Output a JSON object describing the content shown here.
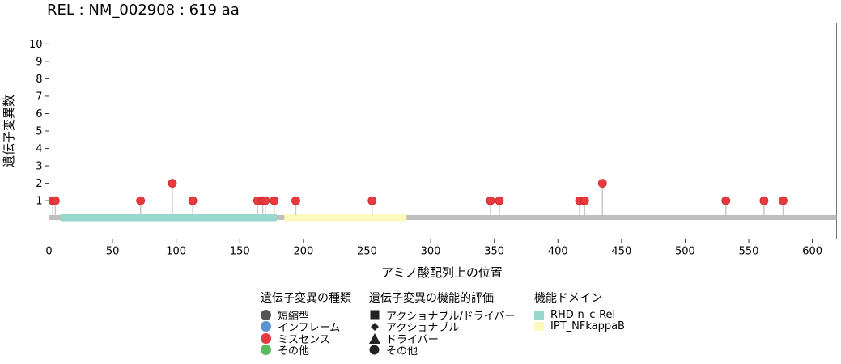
{
  "chart_data": {
    "type": "lollipop",
    "title": "REL : NM_002908 : 619 aa",
    "xlabel": "アミノ酸配列上の位置",
    "ylabel": "遺伝子変異数",
    "xlim": [
      0,
      619
    ],
    "ylim": [
      -1.2,
      11.2
    ],
    "x_ticks": [
      0,
      50,
      100,
      150,
      200,
      250,
      300,
      350,
      400,
      450,
      500,
      550,
      600
    ],
    "y_ticks": [
      1,
      2,
      3,
      4,
      5,
      6,
      7,
      8,
      9,
      10
    ],
    "grid": false,
    "protein_length": 619,
    "domains": [
      {
        "name": "RHD-n_c-Rel",
        "start": 9,
        "end": 179,
        "color": "#96d8cc"
      },
      {
        "name": "IPT_NFkappaB",
        "start": 185,
        "end": 281,
        "color": "#fcf9bd"
      }
    ],
    "mutations": [
      {
        "position": 3,
        "count": 1,
        "type": "ミスセンス"
      },
      {
        "position": 5,
        "count": 1,
        "type": "ミスセンス"
      },
      {
        "position": 72,
        "count": 1,
        "type": "ミスセンス"
      },
      {
        "position": 97,
        "count": 2,
        "type": "ミスセンス"
      },
      {
        "position": 113,
        "count": 1,
        "type": "ミスセンス"
      },
      {
        "position": 164,
        "count": 1,
        "type": "ミスセンス"
      },
      {
        "position": 168,
        "count": 1,
        "type": "ミスセンス"
      },
      {
        "position": 170,
        "count": 1,
        "type": "ミスセンス"
      },
      {
        "position": 177,
        "count": 1,
        "type": "ミスセンス"
      },
      {
        "position": 194,
        "count": 1,
        "type": "ミスセンス"
      },
      {
        "position": 254,
        "count": 1,
        "type": "ミスセンス"
      },
      {
        "position": 347,
        "count": 1,
        "type": "ミスセンス"
      },
      {
        "position": 354,
        "count": 1,
        "type": "ミスセンス"
      },
      {
        "position": 417,
        "count": 1,
        "type": "ミスセンス"
      },
      {
        "position": 421,
        "count": 1,
        "type": "ミスセンス"
      },
      {
        "position": 435,
        "count": 2,
        "type": "ミスセンス"
      },
      {
        "position": 532,
        "count": 1,
        "type": "ミスセンス"
      },
      {
        "position": 562,
        "count": 1,
        "type": "ミスセンス"
      },
      {
        "position": 577,
        "count": 1,
        "type": "ミスセンス"
      }
    ],
    "colors": {
      "backbone": "#bebebe",
      "stem": "#c8c8c8",
      "missense": "#e8393f",
      "missense_stroke": "#c9262b"
    }
  },
  "legend": {
    "type": {
      "title": "遺伝子変異の種類",
      "items": [
        {
          "label": "短縮型",
          "color": "#555555"
        },
        {
          "label": "インフレーム",
          "color": "#5b93d1"
        },
        {
          "label": "ミスセンス",
          "color": "#e8393f"
        },
        {
          "label": "その他",
          "color": "#5cba5c"
        }
      ]
    },
    "evaluation": {
      "title": "遺伝子変異の機能的評価",
      "items": [
        {
          "label": "アクショナブル/ドライバー",
          "shape": "square"
        },
        {
          "label": "アクショナブル",
          "shape": "diamond"
        },
        {
          "label": "ドライバー",
          "shape": "triangle"
        },
        {
          "label": "その他",
          "shape": "circle"
        }
      ]
    },
    "domains": {
      "title": "機能ドメイン",
      "items": [
        {
          "label": "RHD-n_c-Rel",
          "color": "#96d8cc"
        },
        {
          "label": "IPT_NFkappaB",
          "color": "#fcf9bd"
        }
      ]
    }
  }
}
